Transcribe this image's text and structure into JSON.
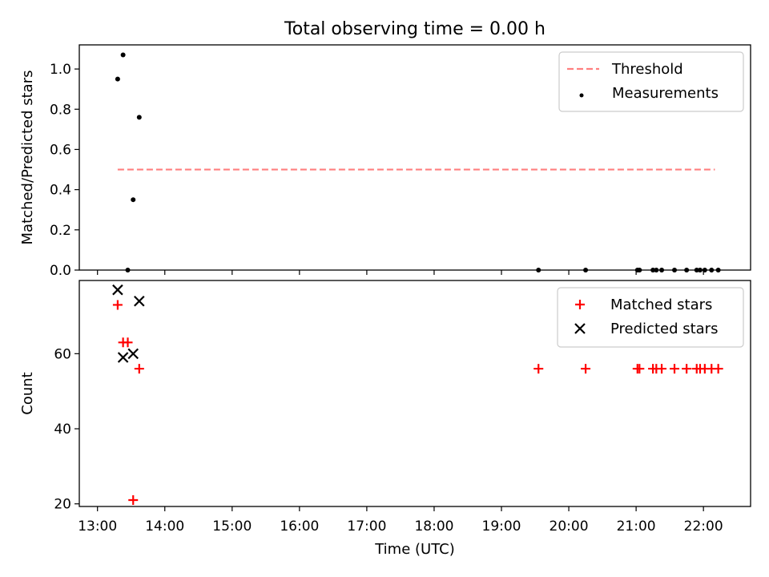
{
  "chart_data": {
    "title": "Total observing time = 0.00 h",
    "x_ticks": [
      "13:00",
      "14:00",
      "15:00",
      "16:00",
      "17:00",
      "18:00",
      "19:00",
      "20:00",
      "21:00",
      "22:00"
    ],
    "xlabel": "Time (UTC)",
    "xlim_hours": [
      12.73,
      22.7
    ],
    "panels": [
      {
        "type": "scatter",
        "ylabel": "Matched/Predicted stars",
        "ylim": [
          0,
          1.12
        ],
        "y_ticks": [
          "0.0",
          "0.2",
          "0.4",
          "0.6",
          "0.8",
          "1.0"
        ],
        "y_tick_values": [
          0,
          0.2,
          0.4,
          0.6,
          0.8,
          1.0
        ],
        "show_x_tick_labels": false,
        "legend_position": "top-right",
        "threshold": {
          "name": "Threshold",
          "value": 0.5,
          "x_range": [
            13.3,
            22.17
          ],
          "color": "#ff7f7f"
        },
        "series": [
          {
            "name": "Measurements",
            "marker": "dot",
            "color": "#000000",
            "points": [
              {
                "x": 13.3,
                "y": 0.95
              },
              {
                "x": 13.38,
                "y": 1.07
              },
              {
                "x": 13.45,
                "y": 0.0
              },
              {
                "x": 13.53,
                "y": 0.35
              },
              {
                "x": 13.62,
                "y": 0.76
              },
              {
                "x": 19.55,
                "y": 0.0
              },
              {
                "x": 20.25,
                "y": 0.0
              },
              {
                "x": 21.02,
                "y": 0.0
              },
              {
                "x": 21.05,
                "y": 0.0
              },
              {
                "x": 21.25,
                "y": 0.0
              },
              {
                "x": 21.3,
                "y": 0.0
              },
              {
                "x": 21.38,
                "y": 0.0
              },
              {
                "x": 21.57,
                "y": 0.0
              },
              {
                "x": 21.75,
                "y": 0.0
              },
              {
                "x": 21.9,
                "y": 0.0
              },
              {
                "x": 21.95,
                "y": 0.0
              },
              {
                "x": 22.02,
                "y": 0.0
              },
              {
                "x": 22.12,
                "y": 0.0
              },
              {
                "x": 22.22,
                "y": 0.0
              }
            ]
          }
        ]
      },
      {
        "type": "scatter",
        "ylabel": "Count",
        "ylim": [
          19.3,
          79.5
        ],
        "y_ticks": [
          "20",
          "40",
          "60"
        ],
        "y_tick_values": [
          20,
          40,
          60
        ],
        "show_x_tick_labels": true,
        "legend_position": "top-right",
        "series": [
          {
            "name": "Matched stars",
            "marker": "plus",
            "color": "#ff0000",
            "points": [
              {
                "x": 13.3,
                "y": 73
              },
              {
                "x": 13.38,
                "y": 63
              },
              {
                "x": 13.45,
                "y": 63
              },
              {
                "x": 13.53,
                "y": 21
              },
              {
                "x": 13.62,
                "y": 56
              },
              {
                "x": 19.55,
                "y": 56
              },
              {
                "x": 20.25,
                "y": 56
              },
              {
                "x": 21.02,
                "y": 56
              },
              {
                "x": 21.05,
                "y": 56
              },
              {
                "x": 21.25,
                "y": 56
              },
              {
                "x": 21.3,
                "y": 56
              },
              {
                "x": 21.38,
                "y": 56
              },
              {
                "x": 21.57,
                "y": 56
              },
              {
                "x": 21.75,
                "y": 56
              },
              {
                "x": 21.9,
                "y": 56
              },
              {
                "x": 21.95,
                "y": 56
              },
              {
                "x": 22.02,
                "y": 56
              },
              {
                "x": 22.12,
                "y": 56
              },
              {
                "x": 22.22,
                "y": 56
              }
            ]
          },
          {
            "name": "Predicted stars",
            "marker": "x",
            "color": "#000000",
            "points": [
              {
                "x": 13.3,
                "y": 77
              },
              {
                "x": 13.38,
                "y": 59
              },
              {
                "x": 13.53,
                "y": 60
              },
              {
                "x": 13.62,
                "y": 74
              }
            ]
          }
        ]
      }
    ]
  }
}
